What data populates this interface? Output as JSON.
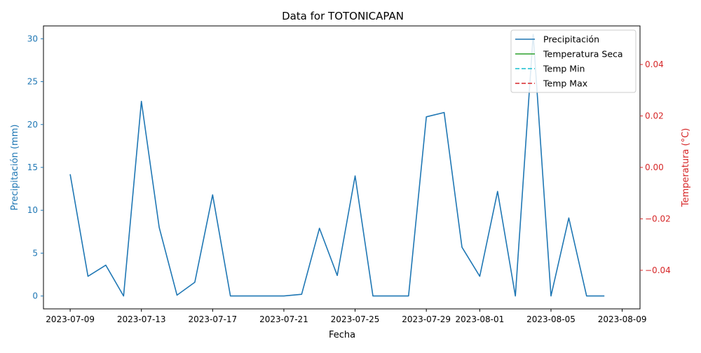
{
  "chart_data": {
    "type": "line",
    "title": "Data for TOTONICAPAN",
    "xlabel": "Fecha",
    "ylabel_left": "Precipitación (mm)",
    "ylabel_right": "Temperatura (°C)",
    "x_ticks": [
      "2023-07-09",
      "2023-07-13",
      "2023-07-17",
      "2023-07-21",
      "2023-07-25",
      "2023-07-29",
      "2023-08-01",
      "2023-08-05",
      "2023-08-09"
    ],
    "y_left_ticks": [
      "0",
      "5",
      "10",
      "15",
      "20",
      "25",
      "30"
    ],
    "y_right_ticks": [
      "−0.04",
      "−0.02",
      "0.00",
      "0.02",
      "0.04"
    ],
    "ylim_left": [
      -1.5,
      31.5
    ],
    "ylim_right": [
      -0.055,
      0.055
    ],
    "legend_position": "top-right",
    "colors": {
      "precip": "#1f77b4",
      "temp_seca": "#2ca02c",
      "temp_min": "#17becf",
      "temp_max": "#d62728",
      "left_axis": "#1f77b4",
      "right_axis": "#d62728"
    },
    "series": [
      {
        "name": "Precipitación",
        "axis": "left",
        "style": "solid",
        "x": [
          "2023-07-09",
          "2023-07-10",
          "2023-07-11",
          "2023-07-12",
          "2023-07-13",
          "2023-07-14",
          "2023-07-15",
          "2023-07-16",
          "2023-07-17",
          "2023-07-18",
          "2023-07-19",
          "2023-07-20",
          "2023-07-21",
          "2023-07-22",
          "2023-07-23",
          "2023-07-24",
          "2023-07-25",
          "2023-07-26",
          "2023-07-27",
          "2023-07-28",
          "2023-07-29",
          "2023-07-30",
          "2023-07-31",
          "2023-08-01",
          "2023-08-02",
          "2023-08-03",
          "2023-08-04",
          "2023-08-05",
          "2023-08-06",
          "2023-08-07",
          "2023-08-08"
        ],
        "values": [
          14.2,
          2.3,
          3.6,
          0.0,
          22.7,
          8.0,
          0.1,
          1.6,
          11.8,
          0.0,
          0.0,
          0.0,
          0.0,
          0.2,
          7.9,
          2.4,
          14.0,
          0.0,
          0.0,
          0.0,
          20.9,
          21.4,
          5.7,
          2.3,
          12.2,
          0.0,
          30.5,
          0.0,
          9.1,
          0.0,
          0.0
        ]
      },
      {
        "name": "Temperatura Seca",
        "axis": "right",
        "style": "solid",
        "values": []
      },
      {
        "name": "Temp Min",
        "axis": "right",
        "style": "dashed",
        "values": []
      },
      {
        "name": "Temp Max",
        "axis": "right",
        "style": "dashed",
        "values": []
      }
    ]
  }
}
